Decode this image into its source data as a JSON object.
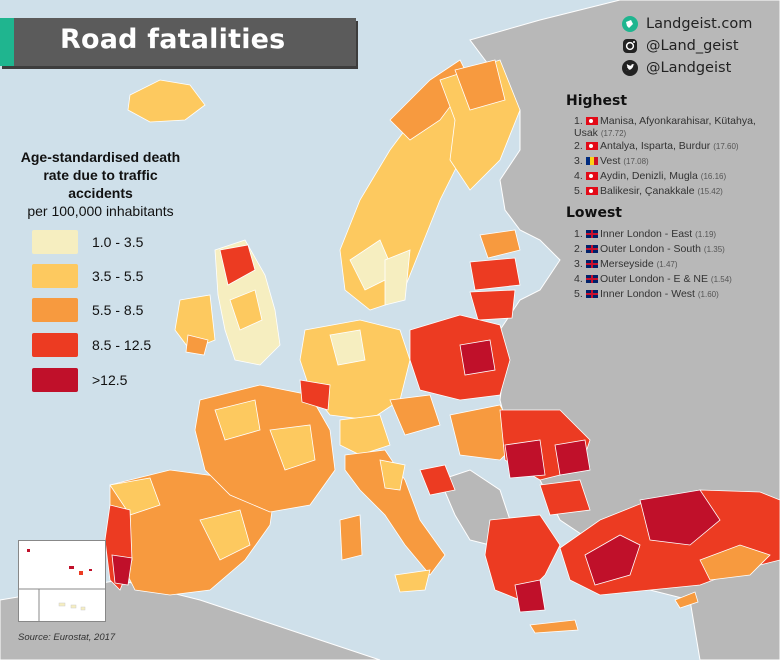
{
  "title": "Road fatalities",
  "social": {
    "website": "Landgeist.com",
    "instagram": "@Land_geist",
    "twitter": "@Landgeist"
  },
  "legend": {
    "title_bold": "Age-standardised death rate due to traffic accidents",
    "title_normal": "per 100,000 inhabitants",
    "items": [
      {
        "label": "1.0 - 3.5",
        "color": "#f6eec0"
      },
      {
        "label": "3.5 - 5.5",
        "color": "#fdc95f"
      },
      {
        "label": "5.5 - 8.5",
        "color": "#f79a3f"
      },
      {
        "label": "8.5 - 12.5",
        "color": "#ec3b22"
      },
      {
        "label": ">12.5",
        "color": "#c0102a"
      }
    ]
  },
  "highest": {
    "heading": "Highest",
    "rows": [
      {
        "rank": "1.",
        "flag": "tr",
        "region": "Manisa, Afyonkarahisar, Kütahya, Usak",
        "value": "(17.72)"
      },
      {
        "rank": "2.",
        "flag": "tr",
        "region": "Antalya, Isparta, Burdur",
        "value": "(17.60)"
      },
      {
        "rank": "3.",
        "flag": "ro",
        "region": "Vest",
        "value": "(17.08)"
      },
      {
        "rank": "4.",
        "flag": "tr",
        "region": "Aydin, Denizli, Mugla",
        "value": "(16.16)"
      },
      {
        "rank": "5.",
        "flag": "tr",
        "region": "Balikesir, Çanakkale",
        "value": "(15.42)"
      }
    ]
  },
  "lowest": {
    "heading": "Lowest",
    "rows": [
      {
        "rank": "1.",
        "flag": "gb",
        "region": "Inner London - East",
        "value": "(1.19)"
      },
      {
        "rank": "2.",
        "flag": "gb",
        "region": "Outer London - South",
        "value": "(1.35)"
      },
      {
        "rank": "3.",
        "flag": "gb",
        "region": "Merseyside",
        "value": "(1.47)"
      },
      {
        "rank": "4.",
        "flag": "gb",
        "region": "Outer London - E & NE",
        "value": "(1.54)"
      },
      {
        "rank": "5.",
        "flag": "gb",
        "region": "Inner London - West",
        "value": "(1.60)"
      }
    ]
  },
  "source": "Source: Eurostat, 2017",
  "colors": {
    "sea": "#cfe0ea",
    "non_data_land": "#b8b8b8",
    "title_bg": "#5b5b5b",
    "accent": "#1fb58f"
  }
}
